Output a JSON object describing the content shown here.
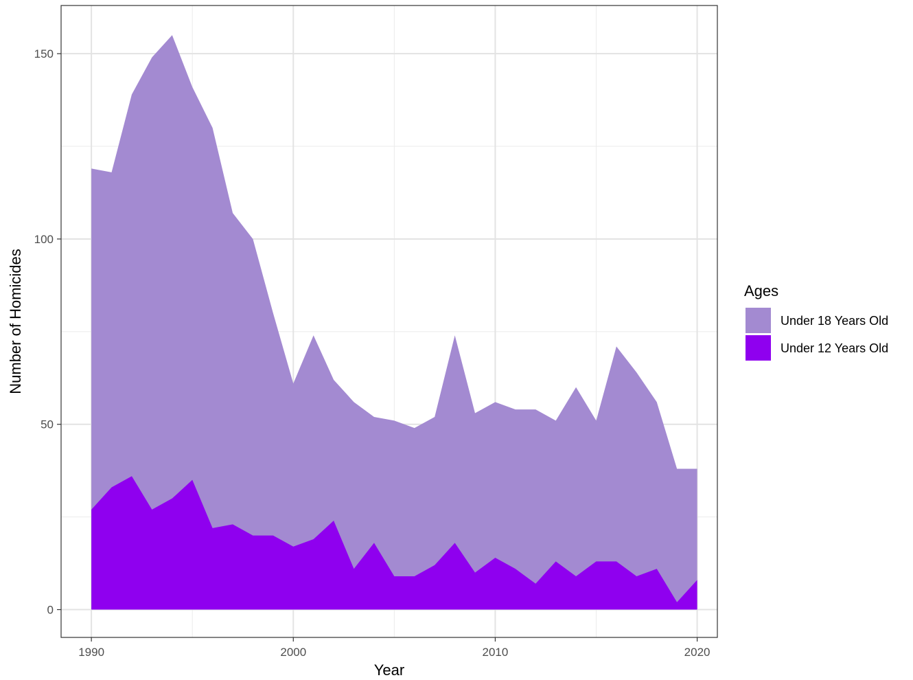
{
  "chart_data": {
    "type": "area",
    "xlabel": "Year",
    "ylabel": "Number of Homicides",
    "xlim": [
      1988.5,
      2021
    ],
    "ylim": [
      -7.5,
      163
    ],
    "x_ticks": [
      1990,
      2000,
      2010,
      2020
    ],
    "y_ticks": [
      0,
      50,
      100,
      150
    ],
    "grid": true,
    "legend": {
      "title": "Ages",
      "position": "right"
    },
    "x": [
      1990,
      1991,
      1992,
      1993,
      1994,
      1995,
      1996,
      1997,
      1998,
      1999,
      2000,
      2001,
      2002,
      2003,
      2004,
      2005,
      2006,
      2007,
      2008,
      2009,
      2010,
      2011,
      2012,
      2013,
      2014,
      2015,
      2016,
      2017,
      2018,
      2019,
      2020
    ],
    "series": [
      {
        "name": "Under 18 Years Old",
        "color": "#a38ad1",
        "values": [
          119,
          118,
          139,
          149,
          155,
          141,
          130,
          107,
          100,
          80,
          61,
          74,
          62,
          56,
          52,
          51,
          49,
          52,
          74,
          53,
          56,
          54,
          54,
          51,
          60,
          51,
          71,
          64,
          56,
          38,
          38
        ]
      },
      {
        "name": "Under 12 Years Old",
        "color": "#8f00ef",
        "values": [
          27,
          33,
          36,
          27,
          30,
          35,
          22,
          23,
          20,
          20,
          17,
          19,
          24,
          11,
          18,
          9,
          9,
          12,
          18,
          10,
          14,
          11,
          7,
          13,
          9,
          13,
          13,
          9,
          11,
          2,
          8
        ]
      }
    ]
  }
}
